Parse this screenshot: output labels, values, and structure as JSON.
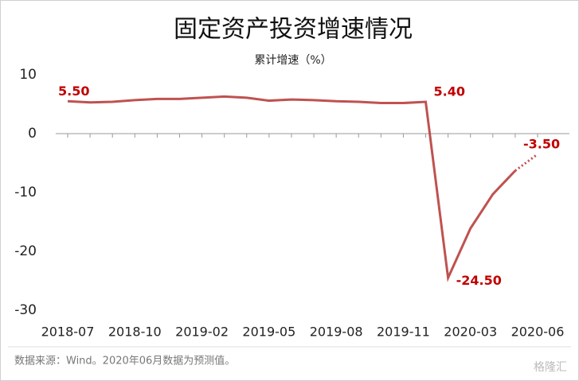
{
  "chart_data": {
    "type": "line",
    "title": "固定资产投资增速情况",
    "subtitle": "累计增速（%）",
    "categories": [
      "2018-07",
      null,
      null,
      "2018-10",
      null,
      null,
      "2019-02",
      null,
      null,
      "2019-05",
      null,
      null,
      "2019-08",
      null,
      null,
      "2019-11",
      null,
      null,
      "2020-03",
      null,
      null,
      "2020-06"
    ],
    "series": [
      {
        "color": "#bf5250",
        "values": [
          5.5,
          5.3,
          5.4,
          5.7,
          5.9,
          5.9,
          6.1,
          6.3,
          6.1,
          5.6,
          5.8,
          5.7,
          5.5,
          5.4,
          5.2,
          5.2,
          5.4,
          -24.5,
          -16.1,
          -10.3,
          -6.3,
          -3.5
        ],
        "value_labels": [
          "5.50",
          null,
          null,
          null,
          null,
          null,
          null,
          null,
          null,
          null,
          null,
          null,
          null,
          null,
          null,
          null,
          "5.40",
          "-24.50",
          null,
          null,
          null,
          "-3.50"
        ],
        "dotted_from": 20
      }
    ],
    "ylim": [
      -30,
      10
    ],
    "yticks": [
      10,
      0,
      -10,
      -20,
      -30
    ],
    "grid": false,
    "source": "数据来源：Wind。2020年06月数据为预测值。",
    "logo": "格隆汇"
  }
}
